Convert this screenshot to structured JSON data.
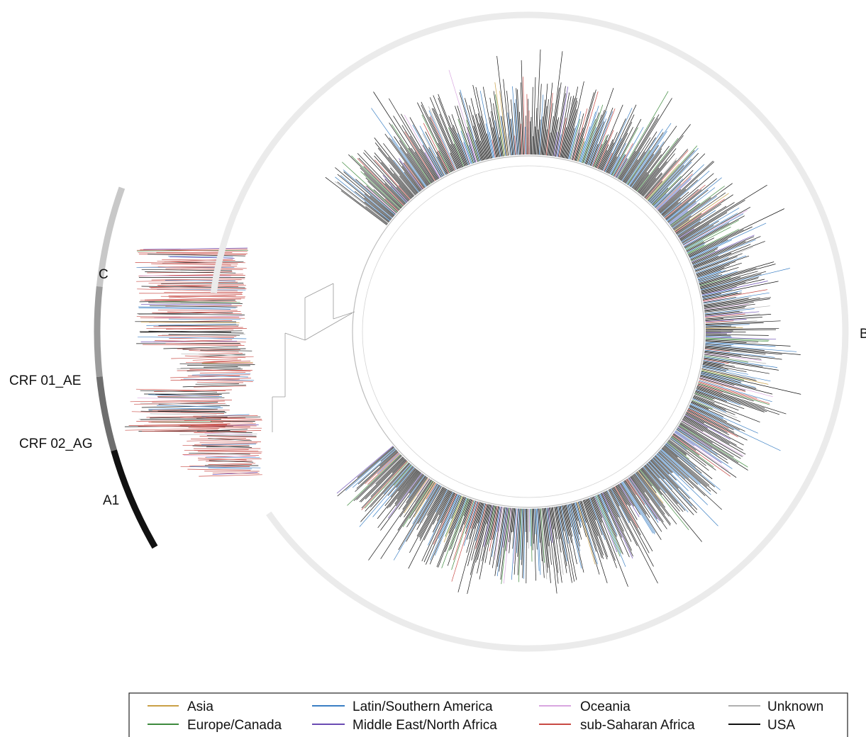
{
  "clades": [
    {
      "id": "B",
      "label": "B"
    },
    {
      "id": "C",
      "label": "C"
    },
    {
      "id": "CRF01_AE",
      "label": "CRF 01_AE"
    },
    {
      "id": "CRF02_AG",
      "label": "CRF 02_AG"
    },
    {
      "id": "A1",
      "label": "A1"
    }
  ],
  "legend": {
    "items": [
      {
        "label": "Asia",
        "color": "#c9a046"
      },
      {
        "label": "Europe/Canada",
        "color": "#3d8a3d"
      },
      {
        "label": "Latin/Southern America",
        "color": "#3a7fc4"
      },
      {
        "label": "Middle East/North Africa",
        "color": "#6a4bb3"
      },
      {
        "label": "Oceania",
        "color": "#d8a6e0"
      },
      {
        "label": "sub-Saharan Africa",
        "color": "#c84a44"
      },
      {
        "label": "Unknown",
        "color": "#b0b0b0"
      },
      {
        "label": "USA",
        "color": "#111111"
      }
    ]
  },
  "colors": {
    "tree_internal": "#9a9a9a",
    "clade_bar_B": "#ebebeb",
    "clade_bar_C": "#c8c8c8",
    "clade_bar_CRF01_AE": "#9c9c9c",
    "clade_bar_CRF02_AG": "#6e6e6e",
    "clade_bar_A1": "#111111"
  }
}
